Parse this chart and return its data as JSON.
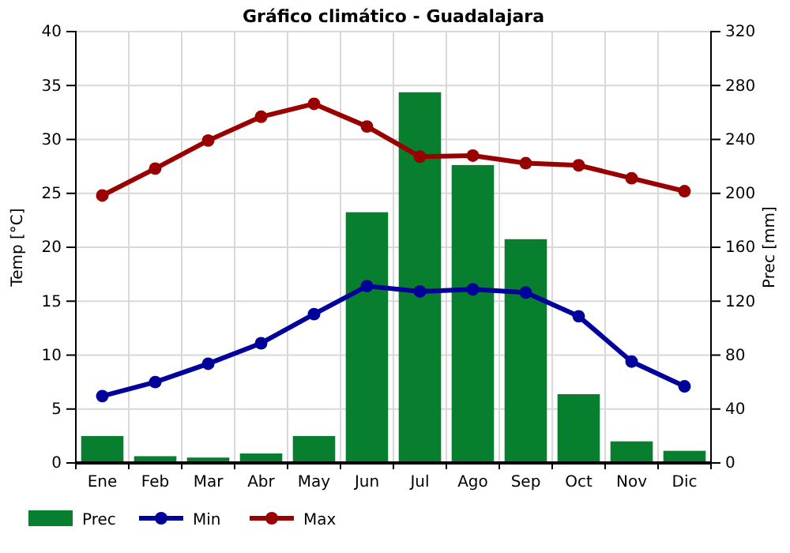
{
  "chart_data": {
    "type": "bar",
    "title": "Gráfico climático - Guadalajara",
    "ylabel": "Temp [°C]",
    "y2label": "Prec [mm]",
    "categories": [
      "Ene",
      "Feb",
      "Mar",
      "Abr",
      "May",
      "Jun",
      "Jul",
      "Ago",
      "Sep",
      "Oct",
      "Nov",
      "Dic"
    ],
    "series": [
      {
        "name": "Prec",
        "axis": "y2",
        "color": "#077f2f",
        "values": [
          20,
          5,
          4,
          7,
          20,
          186,
          275,
          221,
          166,
          51,
          16,
          9
        ]
      },
      {
        "name": "Min",
        "type": "line",
        "color": "#00009a",
        "values": [
          6.2,
          7.5,
          9.2,
          11.1,
          13.8,
          16.4,
          15.9,
          16.1,
          15.8,
          13.6,
          9.4,
          7.1
        ]
      },
      {
        "name": "Max",
        "type": "line",
        "color": "#990000",
        "values": [
          24.8,
          27.3,
          29.9,
          32.1,
          33.3,
          31.2,
          28.4,
          28.5,
          27.8,
          27.6,
          26.4,
          25.2
        ]
      }
    ],
    "ylim": [
      0,
      40
    ],
    "yticks": [
      0,
      5,
      10,
      15,
      20,
      25,
      30,
      35,
      40
    ],
    "y2lim": [
      0,
      320
    ],
    "y2ticks": [
      0,
      40,
      80,
      120,
      160,
      200,
      240,
      280,
      320
    ],
    "grid": true,
    "legend": "bottom left",
    "marker": "circle",
    "line_style": "solid"
  }
}
